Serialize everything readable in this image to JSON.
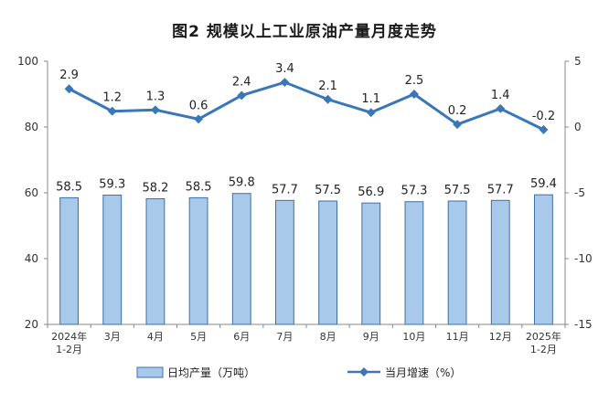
{
  "title": "图2  规模以上工业原油产量月度走势",
  "chart_data": {
    "type": "bar+line",
    "categories": [
      [
        "2024年",
        "1-2月"
      ],
      [
        "3月"
      ],
      [
        "4月"
      ],
      [
        "5月"
      ],
      [
        "6月"
      ],
      [
        "7月"
      ],
      [
        "8月"
      ],
      [
        "9月"
      ],
      [
        "10月"
      ],
      [
        "11月"
      ],
      [
        "12月"
      ],
      [
        "2025年",
        "1-2月"
      ]
    ],
    "series": [
      {
        "name": "日均产量（万吨）",
        "type": "bar",
        "axis": "left",
        "color": "#a9c9ea",
        "values": [
          58.5,
          59.3,
          58.2,
          58.5,
          59.8,
          57.7,
          57.5,
          56.9,
          57.3,
          57.5,
          57.7,
          59.4
        ],
        "labels": [
          "58.5",
          "59.3",
          "58.2",
          "58.5",
          "59.8",
          "57.7",
          "57.5",
          "56.9",
          "57.3",
          "57.5",
          "57.7",
          "59.4"
        ]
      },
      {
        "name": "当月增速（%）",
        "type": "line",
        "axis": "right",
        "color": "#3a77b8",
        "values": [
          2.9,
          1.2,
          1.3,
          0.6,
          2.4,
          3.4,
          2.1,
          1.1,
          2.5,
          0.2,
          1.4,
          -0.2
        ],
        "labels": [
          "2.9",
          "1.2",
          "1.3",
          "0.6",
          "2.4",
          "3.4",
          "2.1",
          "1.1",
          "2.5",
          "0.2",
          "1.4",
          "-0.2"
        ]
      }
    ],
    "yleft": {
      "lim": [
        20,
        100
      ],
      "ticks": [
        "100",
        "80",
        "60",
        "40",
        "20"
      ]
    },
    "yright": {
      "lim": [
        -15,
        5
      ],
      "ticks": [
        "5",
        "0",
        "-5",
        "-10",
        "-15"
      ]
    },
    "legend_position": "bottom",
    "grid": false
  }
}
